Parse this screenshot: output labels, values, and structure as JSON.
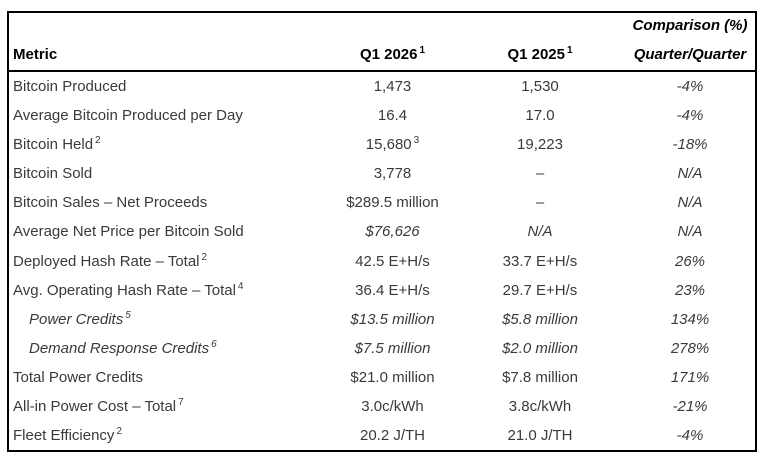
{
  "colors": {
    "border": "#000000",
    "header_text": "#000000",
    "body_text": "#3a3a3a",
    "background": "#ffffff"
  },
  "table": {
    "header": {
      "metric_label": "Metric",
      "q1_2026_label": "Q1 2026",
      "q1_2026_footnote": "1",
      "q1_2025_label": "Q1 2025",
      "q1_2025_footnote": "1",
      "comparison_line1": "Comparison (%)",
      "comparison_line2": "Quarter/Quarter"
    },
    "rows": [
      {
        "metric": "Bitcoin Produced",
        "metric_sup": "",
        "q1_2026": "1,473",
        "q1_2026_sup": "",
        "q1_2025": "1,530",
        "comparison": "-4%",
        "metric_italic": false,
        "values_italic": false,
        "indent": false
      },
      {
        "metric": "Average Bitcoin Produced per Day",
        "metric_sup": "",
        "q1_2026": "16.4",
        "q1_2026_sup": "",
        "q1_2025": "17.0",
        "comparison": "-4%",
        "metric_italic": false,
        "values_italic": false,
        "indent": false
      },
      {
        "metric": "Bitcoin Held",
        "metric_sup": "2",
        "q1_2026": "15,680",
        "q1_2026_sup": "3",
        "q1_2025": "19,223",
        "comparison": "-18%",
        "metric_italic": false,
        "values_italic": false,
        "indent": false
      },
      {
        "metric": "Bitcoin Sold",
        "metric_sup": "",
        "q1_2026": "3,778",
        "q1_2026_sup": "",
        "q1_2025": "–",
        "comparison": "N/A",
        "metric_italic": false,
        "values_italic": false,
        "indent": false
      },
      {
        "metric": "Bitcoin Sales – Net Proceeds",
        "metric_sup": "",
        "q1_2026": "$289.5 million",
        "q1_2026_sup": "",
        "q1_2025": "–",
        "comparison": "N/A",
        "metric_italic": false,
        "values_italic": false,
        "indent": false
      },
      {
        "metric": "Average Net Price per Bitcoin Sold",
        "metric_sup": "",
        "q1_2026": "$76,626",
        "q1_2026_sup": "",
        "q1_2025": "N/A",
        "comparison": "N/A",
        "metric_italic": false,
        "values_italic": true,
        "indent": false
      },
      {
        "metric": "Deployed Hash Rate – Total",
        "metric_sup": "2",
        "q1_2026": "42.5 E+H/s",
        "q1_2026_sup": "",
        "q1_2025": "33.7 E+H/s",
        "comparison": "26%",
        "metric_italic": false,
        "values_italic": false,
        "indent": false
      },
      {
        "metric": "Avg. Operating Hash Rate – Total",
        "metric_sup": "4",
        "q1_2026": "36.4 E+H/s",
        "q1_2026_sup": "",
        "q1_2025": "29.7 E+H/s",
        "comparison": "23%",
        "metric_italic": false,
        "values_italic": false,
        "indent": false
      },
      {
        "metric": "Power Credits",
        "metric_sup": "5",
        "q1_2026": "$13.5 million",
        "q1_2026_sup": "",
        "q1_2025": "$5.8 million",
        "comparison": "134%",
        "metric_italic": true,
        "values_italic": true,
        "indent": true
      },
      {
        "metric": "Demand Response Credits",
        "metric_sup": "6",
        "q1_2026": "$7.5 million",
        "q1_2026_sup": "",
        "q1_2025": "$2.0 million",
        "comparison": "278%",
        "metric_italic": true,
        "values_italic": true,
        "indent": true
      },
      {
        "metric": "Total Power Credits",
        "metric_sup": "",
        "q1_2026": "$21.0 million",
        "q1_2026_sup": "",
        "q1_2025": "$7.8 million",
        "comparison": "171%",
        "metric_italic": false,
        "values_italic": false,
        "indent": false
      },
      {
        "metric": "All-in Power Cost – Total",
        "metric_sup": "7",
        "q1_2026": "3.0c/kWh",
        "q1_2026_sup": "",
        "q1_2025": "3.8c/kWh",
        "comparison": "-21%",
        "metric_italic": false,
        "values_italic": false,
        "indent": false
      },
      {
        "metric": "Fleet Efficiency",
        "metric_sup": "2",
        "q1_2026": "20.2 J/TH",
        "q1_2026_sup": "",
        "q1_2025": "21.0 J/TH",
        "comparison": "-4%",
        "metric_italic": false,
        "values_italic": false,
        "indent": false
      }
    ]
  }
}
